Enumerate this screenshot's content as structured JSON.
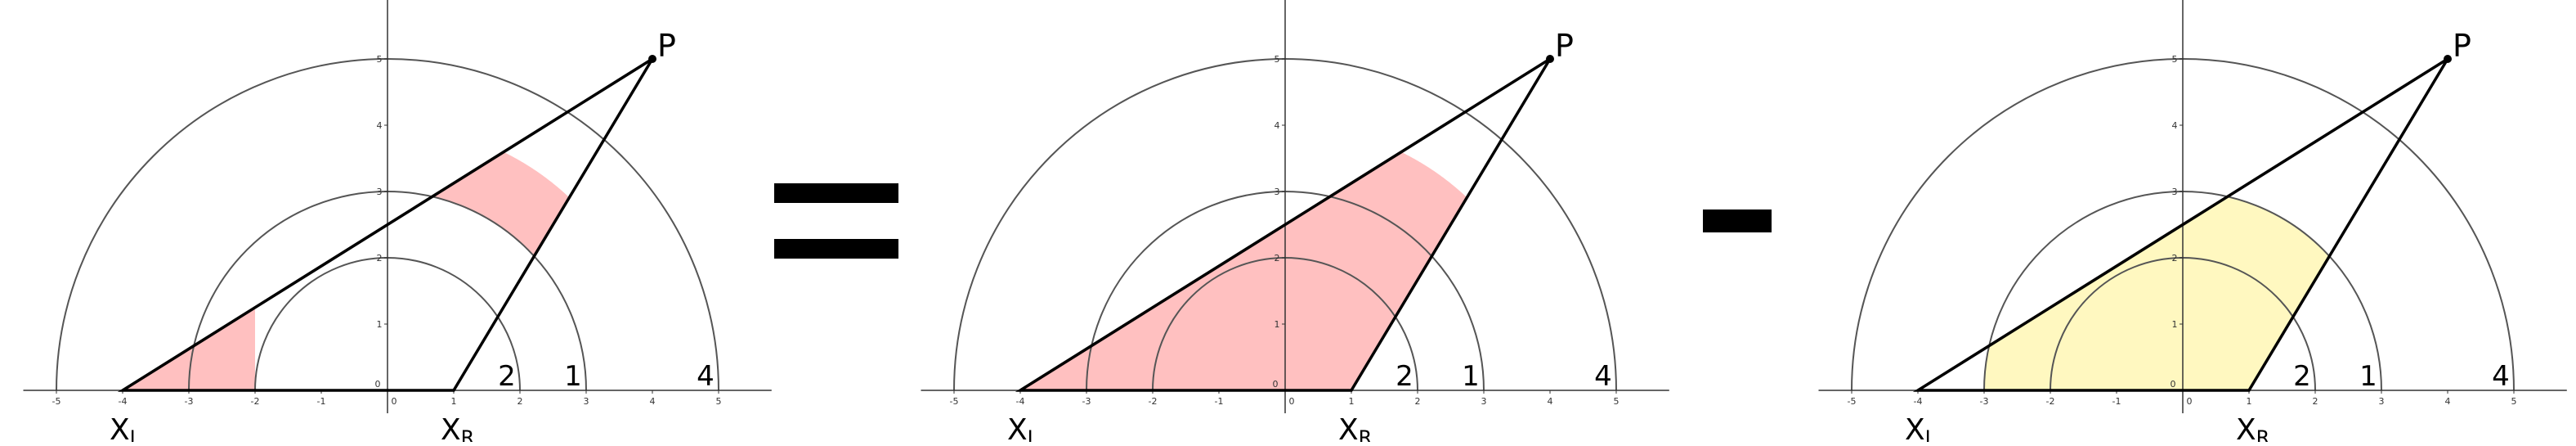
{
  "panels": [
    {
      "id": "left",
      "shading": [
        {
          "type": "ring-triangle",
          "r_in": 3,
          "r_out": 4,
          "fill": "#ffc0c0"
        },
        {
          "type": "ring-triangle",
          "r_in": 2,
          "r_out": 3,
          "fill": "#ffc0c0",
          "x_max": -2
        }
      ]
    },
    {
      "id": "middle",
      "shading": [
        {
          "type": "disk-triangle",
          "r_out": 4,
          "fill": "#ffc0c0"
        }
      ]
    },
    {
      "id": "right",
      "shading": [
        {
          "type": "disk-triangle",
          "r_out": 3,
          "fill": "#fff8c0"
        }
      ]
    }
  ],
  "figure": {
    "x_ticks": [
      "-5",
      "-4",
      "-3",
      "-2",
      "-1",
      "0",
      "1",
      "2",
      "3",
      "4",
      "5"
    ],
    "y_ticks": [
      "1",
      "2",
      "3",
      "4",
      "5"
    ],
    "y_zero_label": "0",
    "point_P": {
      "x": 4,
      "y": 5,
      "label": "P"
    },
    "point_XL": {
      "x": -4,
      "y": 0,
      "label": "X",
      "sub": "L"
    },
    "point_XR": {
      "x": 1,
      "y": 0,
      "label": "X",
      "sub": "R"
    },
    "arcs": [
      {
        "r": 2,
        "label": "2"
      },
      {
        "r": 3,
        "label": "1"
      },
      {
        "r": 5,
        "label": "4"
      }
    ]
  },
  "operators": [
    {
      "type": "equals",
      "name": "equals-sign"
    },
    {
      "type": "minus",
      "name": "minus-sign"
    }
  ],
  "colors": {
    "line": "#000000",
    "circle": "#555555",
    "pink": "#ffc0c0",
    "yellow": "#fff8c0",
    "tick_text": "#333333"
  }
}
